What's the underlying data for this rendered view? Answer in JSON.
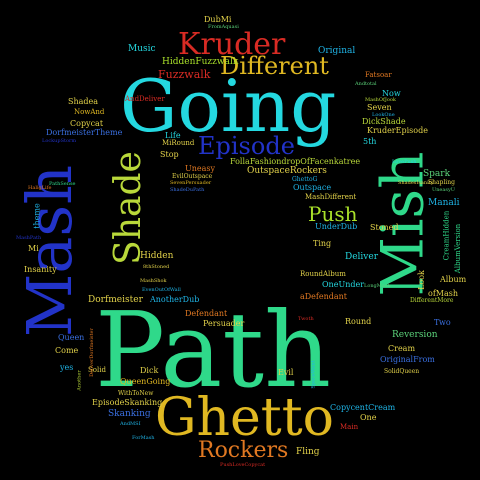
{
  "words": {
    "path": "Path",
    "going": "Going",
    "mash": "Mash",
    "mish": "Mish",
    "ghetto": "Ghetto",
    "shade": "Shade",
    "kruder": "Kruder",
    "different": "Different",
    "episode": "Episode",
    "rockers": "Rockers",
    "push": "Push",
    "fuzzwalk": "Fuzzwalk",
    "hiddenfuzzwalk": "HiddenFuzzwalk",
    "music": "Music",
    "dubmi": "DubMi",
    "fromaquasi": "FromAquasi",
    "original": "Original",
    "fatsoar": "Fatsoar",
    "andtotal": "Andtotal",
    "now": "Now",
    "mashofjook": "MashOfJook",
    "seven": "Seven",
    "lookone": "LookOne",
    "dickshade": "DickShade",
    "kruderepisode": "KruderEpisode",
    "sth": "5th",
    "andeliver": "AndDeliver",
    "shadea": "Shadea",
    "nowand": "NowAnd",
    "copycat": "Copycat",
    "dorfmeistertheme": "DorfmeisterTheme",
    "lockupstorm": "LockupStorm",
    "life": "Life",
    "miround": "MiRound",
    "stop": "Stop",
    "uneasy": "Uneasy",
    "evildutspace": "EvilOutspace",
    "sevenpersuader": "SevenPersuader",
    "shadedupath": "ShadeDuPath",
    "follafashion": "FollaFashiondropOfFacenkatree",
    "outspacerockers": "OutspaceRockers",
    "ghettog": "GhettoG",
    "outspace": "Outspace",
    "mashdifferent": "MashDifferent",
    "lovepush": "LovePush",
    "spark": "Spark",
    "shapling": "Shapling",
    "uneasyu": "UneasyU",
    "shadesisanity": "ShadesIsanity",
    "manali": "Manali",
    "creamhidden": "CreamHidden",
    "albumversion": "AlbumVersion",
    "album": "Album",
    "lookq": "Look",
    "ofmash": "ofMash",
    "differentmore": "DifferentMore",
    "underdub": "UnderDub",
    "stoned": "Stoned",
    "ting": "Ting",
    "deliver": "Deliver",
    "longmash": "LongMash",
    "roundalbum": "RoundAlbum",
    "oneunder": "OneUnder",
    "adefendant": "aDefendant",
    "round": "Round",
    "twoth": "Twoth",
    "reversion": "Reversion",
    "cream": "Cream",
    "originalfrom": "OriginalFrom",
    "solidqueen": "SolidQueen",
    "two": "Two",
    "hidden": "Hidden",
    "sthstoned": "8thStoned",
    "mashshok": "MashShok",
    "evenoutofwall": "EvenOutOfWall",
    "anotherdub": "AnotherDub",
    "dorfmeister": "Dorfmeister",
    "defendant": "Defendant",
    "persuader": "Persuader",
    "insanity": "Insanity",
    "mi": "Mi",
    "theme": "theme",
    "mashpath": "MashPath",
    "pathsense": "PathSense",
    "haliglife": "HaligLife",
    "queen": "Queen",
    "come": "Come",
    "yes": "yes",
    "solid": "Solid",
    "anotherr": "Another",
    "deliverdorf": "DeliverDorfmeister",
    "dick": "Dick",
    "queengoing": "QueenGoing",
    "withtonew": "WithToNew",
    "episodeskanking": "EpisodeSkanking",
    "skanking": "Skanking",
    "andmsi": "AndMSI",
    "forshock": "ForMash",
    "evil": "Evil",
    "spacewant": "SpaceWant",
    "copycentcream": "CopycentCream",
    "one": "One",
    "main": "Main",
    "fling": "Fling",
    "pushlovecopycat": "PushLoveCopycat"
  },
  "colors": {
    "background": "#000000",
    "cyan": "#24d8e0",
    "green": "#2fd98a",
    "blue": "#2233c8",
    "red": "#d92b24",
    "gold": "#e0b822"
  }
}
